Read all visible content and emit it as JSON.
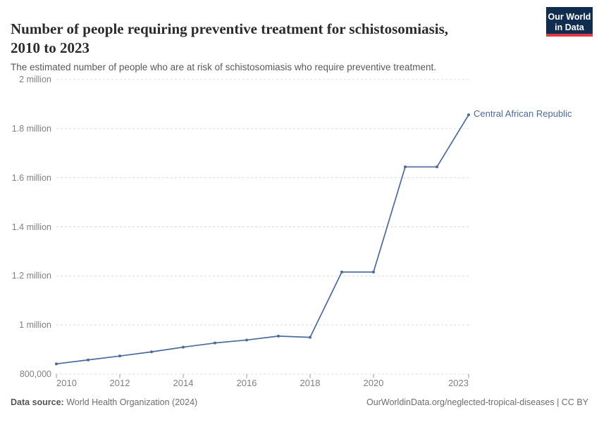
{
  "header": {
    "title": "Number of people requiring preventive treatment for schistosomiasis, 2010 to 2023",
    "title_line1": "Number of people requiring preventive treatment for schistosomiasis,",
    "title_line2": "2010 to 2023",
    "subtitle": "The estimated number of people who are at risk of schistosomiasis who require preventive treatment.",
    "logo": {
      "line1": "Our World",
      "line2": "in Data"
    }
  },
  "chart_data": {
    "type": "line",
    "title": "Number of people requiring preventive treatment for schistosomiasis, 2010 to 2023",
    "xlabel": "",
    "ylabel": "",
    "xlim": [
      2010,
      2023
    ],
    "ylim": [
      800000,
      2000000
    ],
    "grid": "horizontal-dashed",
    "legend_position": "end-of-line-label",
    "series": [
      {
        "name": "Central African Republic",
        "color": "#4c6a9c",
        "x": [
          2010,
          2011,
          2012,
          2013,
          2014,
          2015,
          2016,
          2017,
          2018,
          2019,
          2020,
          2021,
          2022,
          2023
        ],
        "values": [
          842000,
          858000,
          874000,
          891000,
          910000,
          927000,
          939000,
          955000,
          950000,
          1216000,
          1216000,
          1644000,
          1644000,
          1856000
        ]
      }
    ],
    "yticks": [
      {
        "value": 800000,
        "label": "800,000"
      },
      {
        "value": 1000000,
        "label": "1 million"
      },
      {
        "value": 1200000,
        "label": "1.2 million"
      },
      {
        "value": 1400000,
        "label": "1.4 million"
      },
      {
        "value": 1600000,
        "label": "1.6 million"
      },
      {
        "value": 1800000,
        "label": "1.8 million"
      },
      {
        "value": 2000000,
        "label": "2 million"
      }
    ],
    "xticks": [
      {
        "value": 2010,
        "label": "2010"
      },
      {
        "value": 2012,
        "label": "2012"
      },
      {
        "value": 2014,
        "label": "2014"
      },
      {
        "value": 2016,
        "label": "2016"
      },
      {
        "value": 2018,
        "label": "2018"
      },
      {
        "value": 2020,
        "label": "2020"
      },
      {
        "value": 2023,
        "label": "2023"
      }
    ],
    "colors": {
      "line": "#4c6a9c",
      "grid": "#dcdcdc",
      "tick": "#9a9a9a",
      "axis_text": "#818181"
    }
  },
  "footer": {
    "datasource_label": "Data source:",
    "datasource_value": "World Health Organization (2024)",
    "rights": "OurWorldinData.org/neglected-tropical-diseases | CC BY"
  }
}
